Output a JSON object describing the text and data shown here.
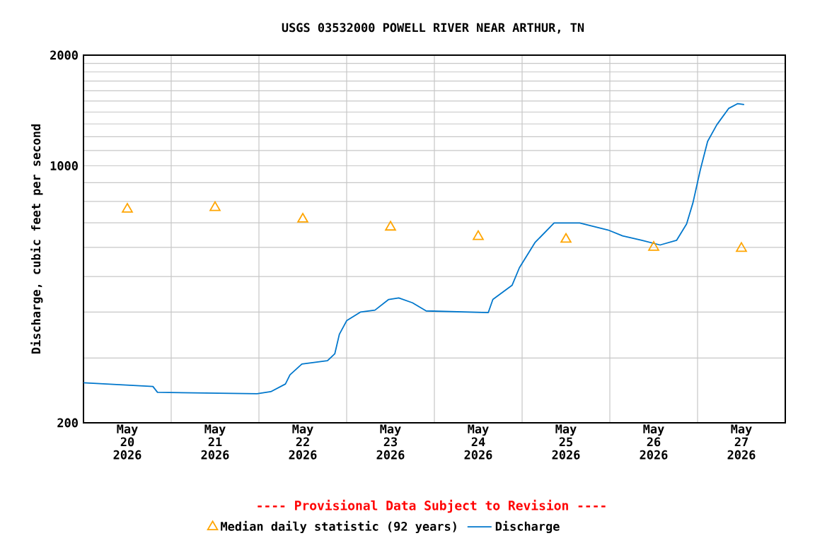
{
  "chart_data": {
    "type": "line",
    "title": "USGS 03532000 POWELL RIVER NEAR ARTHUR, TN",
    "ylabel": "Discharge, cubic feet per second",
    "annotations": [
      "---- Provisional Data Subject to Revision ----"
    ],
    "log": "y",
    "grid": true,
    "legend": "bottom",
    "xlim": [
      "2026-05-20T00:00",
      "2026-05-28T00:00"
    ],
    "xticks": [
      {
        "value": "2026-05-21T00:00",
        "label": null
      },
      {
        "value": "2026-05-22T00:00",
        "label": null
      },
      {
        "value": "2026-05-23T00:00",
        "label": null
      },
      {
        "value": "2026-05-24T00:00",
        "label": null
      },
      {
        "value": "2026-05-25T00:00",
        "label": null
      },
      {
        "value": "2026-05-26T00:00",
        "label": null
      },
      {
        "value": "2026-05-27T00:00",
        "label": null
      },
      {
        "value": "2026-05-20T12:00",
        "label": "May 20 2026"
      },
      {
        "value": "2026-05-21T12:00",
        "label": "May 21 2026"
      },
      {
        "value": "2026-05-22T12:00",
        "label": "May 22 2026"
      },
      {
        "value": "2026-05-23T12:00",
        "label": "May 23 2026"
      },
      {
        "value": "2026-05-24T12:00",
        "label": "May 24 2026"
      },
      {
        "value": "2026-05-25T12:00",
        "label": "May 25 2026"
      },
      {
        "value": "2026-05-26T12:00",
        "label": "May 26 2026"
      },
      {
        "value": "2026-05-27T12:00",
        "label": "May 27 2026"
      }
    ],
    "ylim": [
      200,
      2000
    ],
    "yticks": [
      200,
      {
        "value": 300,
        "label": null
      },
      {
        "value": 400,
        "label": null
      },
      {
        "value": 500,
        "label": null
      },
      {
        "value": 600,
        "label": null
      },
      {
        "value": 700,
        "label": null
      },
      {
        "value": 800,
        "label": null
      },
      {
        "value": 900,
        "label": null
      },
      1000,
      {
        "value": 1100,
        "label": null
      },
      {
        "value": 1200,
        "label": null
      },
      {
        "value": 1300,
        "label": null
      },
      {
        "value": 1400,
        "label": null
      },
      {
        "value": 1500,
        "label": null
      },
      {
        "value": 1600,
        "label": null
      },
      {
        "value": 1700,
        "label": null
      },
      {
        "value": 1800,
        "label": null
      },
      {
        "value": 1900,
        "label": null
      },
      2000
    ],
    "series": [
      {
        "name": "Median daily statistic (92 years)",
        "type": "scatter",
        "marker": "triangle",
        "color": "#ffa500",
        "x": [
          "2026-05-20T12:00",
          "2026-05-21T12:00",
          "2026-05-22T12:00",
          "2026-05-23T12:00",
          "2026-05-24T12:00",
          "2026-05-25T12:00",
          "2026-05-26T12:00",
          "2026-05-27T12:00"
        ],
        "values": [
          762,
          770,
          716,
          681,
          642,
          631,
          600,
          596
        ]
      },
      {
        "name": "Discharge",
        "marker": "none",
        "line_style": "solid",
        "color": "#0077cc",
        "x": [
          "2026-05-20T00:00",
          "2026-05-20T19:00",
          "2026-05-20T20:15",
          "2026-05-21T23:30",
          "2026-05-22T03:15",
          "2026-05-22T07:15",
          "2026-05-22T08:30",
          "2026-05-22T11:45",
          "2026-05-22T18:45",
          "2026-05-22T20:45",
          "2026-05-22T22:00",
          "2026-05-23T00:00",
          "2026-05-23T03:45",
          "2026-05-23T07:45",
          "2026-05-23T11:30",
          "2026-05-23T14:15",
          "2026-05-23T18:00",
          "2026-05-23T21:45",
          "2026-05-24T14:45",
          "2026-05-24T16:00",
          "2026-05-24T21:15",
          "2026-05-24T23:15",
          "2026-05-25T03:30",
          "2026-05-25T08:45",
          "2026-05-25T15:45",
          "2026-05-25T23:30",
          "2026-05-26T03:30",
          "2026-05-26T08:45",
          "2026-05-26T13:45",
          "2026-05-26T18:15",
          "2026-05-26T21:00",
          "2026-05-26T22:45",
          "2026-05-27T00:45",
          "2026-05-27T02:45",
          "2026-05-27T05:15",
          "2026-05-27T08:30",
          "2026-05-27T11:00",
          "2026-05-27T12:45"
        ],
        "values": [
          257,
          251,
          242,
          240,
          243,
          255,
          270,
          289,
          295,
          308,
          348,
          379,
          400,
          405,
          433,
          437,
          424,
          403,
          399,
          433,
          473,
          528,
          618,
          699,
          699,
          669,
          645,
          627,
          609,
          627,
          695,
          794,
          975,
          1165,
          1292,
          1432,
          1476,
          1467
        ]
      }
    ]
  }
}
